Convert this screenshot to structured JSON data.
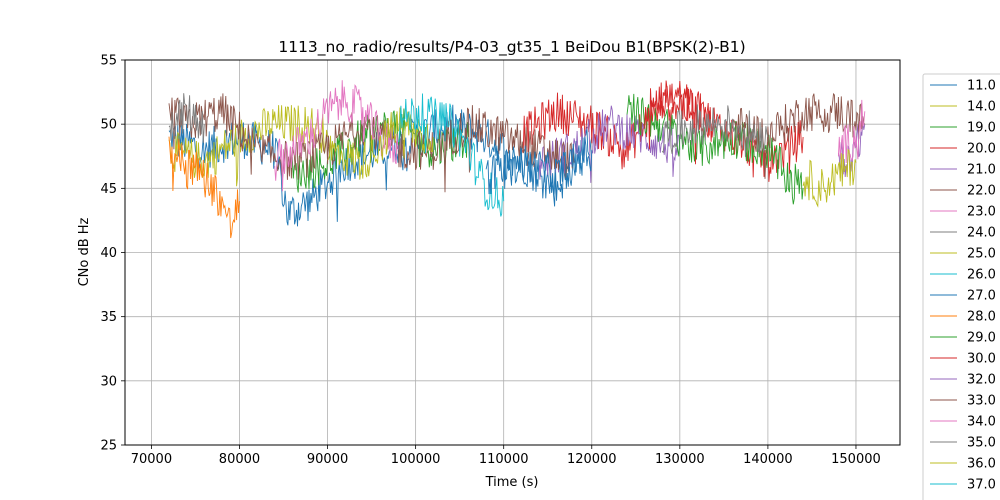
{
  "chart_data": {
    "type": "line",
    "title": "1113_no_radio/results/P4-03_gt35_1 BeiDou B1(BPSK(2)-B1)",
    "xlabel": "Time (s)",
    "ylabel": "CNo dB Hz",
    "xlim": [
      67000,
      155000
    ],
    "ylim": [
      25,
      55
    ],
    "xticks": [
      70000,
      80000,
      90000,
      100000,
      110000,
      120000,
      130000,
      140000,
      150000
    ],
    "xtick_labels": [
      "70000",
      "80000",
      "90000",
      "100000",
      "110000",
      "120000",
      "130000",
      "140000",
      "150000"
    ],
    "yticks": [
      25,
      30,
      35,
      40,
      45,
      50,
      55
    ],
    "ytick_labels": [
      "25",
      "30",
      "35",
      "40",
      "45",
      "50",
      "55"
    ],
    "grid": true,
    "legend_position": "right outside",
    "series": [
      {
        "name": "11.0",
        "color": "#1f77b4",
        "x": [
          72000,
          76000,
          80000,
          84000,
          85500,
          88000,
          92000,
          96000,
          100000,
          104000,
          108000,
          112000,
          116000,
          120000
        ],
        "y": [
          49,
          48,
          49,
          48,
          43,
          44,
          47,
          48,
          49,
          50,
          49,
          47,
          45,
          49
        ]
      },
      {
        "name": "14.0",
        "color": "#bcbd22",
        "x": [
          72000,
          76000,
          80000,
          84000,
          88000,
          90000
        ],
        "y": [
          48,
          47,
          49,
          50,
          50,
          49
        ]
      },
      {
        "name": "19.0",
        "color": "#2ca02c",
        "x": [
          86000,
          90000,
          94000,
          98000,
          102000,
          106000
        ],
        "y": [
          46,
          47,
          49,
          50,
          48,
          49
        ]
      },
      {
        "name": "20.0",
        "color": "#d62728",
        "x": [
          112000,
          116000,
          120000,
          124000,
          128000,
          132000,
          136000,
          140000,
          144000
        ],
        "y": [
          49,
          51,
          50,
          48,
          52,
          51,
          49,
          47,
          49
        ]
      },
      {
        "name": "21.0",
        "color": "#9467bd",
        "x": [
          114000,
          118000,
          122000,
          126000,
          130000
        ],
        "y": [
          47,
          48,
          50,
          49,
          48
        ]
      },
      {
        "name": "22.0",
        "color": "#8c564b",
        "x": [
          72000,
          74000,
          78000,
          82000,
          86000,
          90000,
          94000,
          98000,
          102000,
          106000,
          110000,
          114000,
          118000
        ],
        "y": [
          51,
          50,
          51,
          48,
          47,
          48,
          50,
          48,
          48,
          50,
          49,
          48,
          47
        ]
      },
      {
        "name": "23.0",
        "color": "#e377c2",
        "x": [
          84000,
          88000,
          90000,
          92000,
          94000,
          96000,
          98000
        ],
        "y": [
          47,
          49,
          51,
          52,
          51,
          49,
          48
        ]
      },
      {
        "name": "24.0",
        "color": "#7f7f7f",
        "x": [
          72000,
          74000,
          76000
        ],
        "y": [
          50,
          51,
          50
        ]
      },
      {
        "name": "25.0",
        "color": "#bcbd22",
        "x": [
          90000,
          94000,
          98000,
          102000
        ],
        "y": [
          48,
          47,
          50,
          49
        ]
      },
      {
        "name": "26.0",
        "color": "#17becf",
        "x": [
          98000,
          100000,
          104000,
          106000,
          108000,
          110000
        ],
        "y": [
          50,
          51,
          50,
          48,
          45,
          44
        ]
      },
      {
        "name": "27.0",
        "color": "#1f77b4",
        "x": [
          108000,
          112000,
          116000,
          120000
        ],
        "y": [
          46,
          47,
          46,
          48
        ]
      },
      {
        "name": "28.0",
        "color": "#ff7f0e",
        "x": [
          72000,
          74000,
          76000,
          78000,
          79000,
          80000
        ],
        "y": [
          48,
          47,
          46,
          44,
          42,
          44
        ]
      },
      {
        "name": "29.0",
        "color": "#2ca02c",
        "x": [
          124000,
          128000,
          132000,
          136000,
          140000,
          142000,
          144000
        ],
        "y": [
          51,
          50,
          48,
          49,
          48,
          46,
          45
        ]
      },
      {
        "name": "30.0",
        "color": "#d62728",
        "x": [
          126000,
          128000,
          130000,
          132000,
          134000
        ],
        "y": [
          51,
          52,
          52,
          51,
          50
        ]
      },
      {
        "name": "32.0",
        "color": "#9467bd",
        "x": [
          148000,
          150000,
          151000
        ],
        "y": [
          47,
          48,
          50
        ]
      },
      {
        "name": "33.0",
        "color": "#8c564b",
        "x": [
          136000,
          140000,
          144000,
          148000,
          151000
        ],
        "y": [
          50,
          49,
          51,
          51,
          50
        ]
      },
      {
        "name": "34.0",
        "color": "#e377c2",
        "x": [
          148000,
          150000,
          151000
        ],
        "y": [
          48,
          49,
          51
        ]
      },
      {
        "name": "35.0",
        "color": "#7f7f7f",
        "x": [
          128000,
          132000,
          136000,
          140000
        ],
        "y": [
          49,
          50,
          50,
          49
        ]
      },
      {
        "name": "36.0",
        "color": "#bcbd22",
        "x": [
          144000,
          146000,
          148000,
          150000
        ],
        "y": [
          46,
          45,
          46,
          47
        ]
      },
      {
        "name": "37.0",
        "color": "#17becf",
        "x": [],
        "y": []
      }
    ]
  }
}
